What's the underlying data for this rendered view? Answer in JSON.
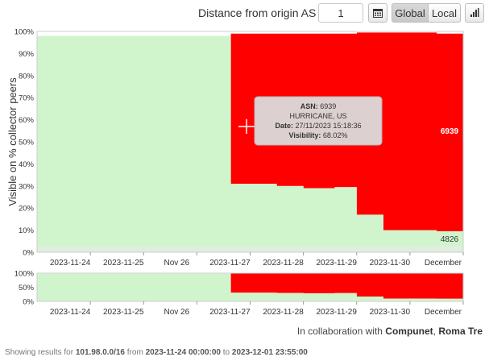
{
  "toolbar": {
    "distance_label": "Distance from origin AS",
    "distance_value": "1",
    "calendar_icon": "calendar-icon",
    "global_label": "Global",
    "local_label": "Local",
    "bars_icon": "bar-chart-icon"
  },
  "chart_data": {
    "type": "area",
    "ylabel": "Visible on % collector peers",
    "yticks": [
      "0%",
      "10%",
      "20%",
      "30%",
      "40%",
      "50%",
      "60%",
      "70%",
      "80%",
      "90%",
      "100%"
    ],
    "xticks": [
      "2023-11-24",
      "2023-11-25",
      "Nov 26",
      "2023-11-27",
      "2023-11-28",
      "2023-11-29",
      "2023-11-30",
      "December"
    ],
    "ylim": [
      0,
      100
    ],
    "x_range": [
      "2023-11-24 00:00",
      "2023-12-01 23:55"
    ],
    "grid": true,
    "series": [
      {
        "name": "4826",
        "color": "#d0f5cc",
        "x": [
          "2023-11-24 00:00",
          "2023-11-27 15:00",
          "2023-11-27 15:18",
          "2023-11-28 12:00",
          "2023-11-29 00:00",
          "2023-11-29 14:00",
          "2023-11-30 00:00",
          "2023-11-30 12:00",
          "2023-12-01 12:00",
          "2023-12-01 23:55"
        ],
        "values": [
          98,
          98,
          31,
          30,
          29,
          29.5,
          17,
          10,
          9.5,
          10
        ]
      },
      {
        "name": "6939",
        "color": "#ff0000",
        "x": [
          "2023-11-24 00:00",
          "2023-11-27 15:00",
          "2023-11-27 15:18",
          "2023-11-28 12:00",
          "2023-11-29 00:00",
          "2023-11-29 14:00",
          "2023-11-30 00:00",
          "2023-11-30 12:00",
          "2023-12-01 12:00",
          "2023-12-01 23:55"
        ],
        "values": [
          0,
          0,
          68,
          69,
          70,
          69.5,
          82.5,
          89.5,
          89.5,
          89
        ]
      }
    ],
    "navigator": {
      "yticks": [
        "0%",
        "50%",
        "100%"
      ]
    },
    "tooltip": {
      "asn_label": "ASN:",
      "asn": "6939",
      "name": "HURRICANE, US",
      "date_label": "Date:",
      "date": "27/11/2023 15:18:36",
      "visibility_label": "Visibility:",
      "visibility": "68.02%"
    }
  },
  "credit": {
    "prefix": "In collaboration with",
    "org1": "Compunet",
    "sep": ",",
    "org2": "Roma Tre"
  },
  "footer": {
    "showing": "Showing results for",
    "prefix": "101.98.0.0/16",
    "from": "from",
    "start": "2023-11-24 00:00:00",
    "to": "to",
    "end": "2023-12-01 23:55:00"
  }
}
